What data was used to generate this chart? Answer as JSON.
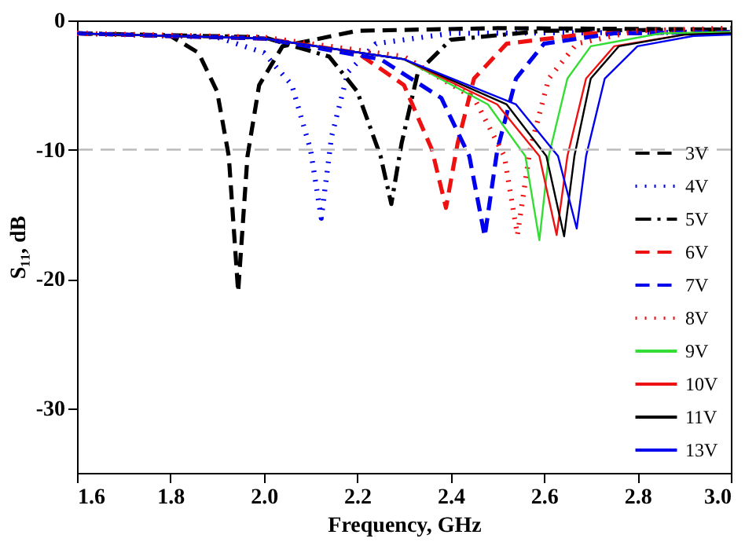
{
  "chart_data": {
    "type": "line",
    "xlabel": "Frequency, GHz",
    "ylabel": "S₁₁, dB",
    "xlim": [
      1.6,
      3.0
    ],
    "xticks": [
      1.6,
      1.8,
      {
        "value": 2.0,
        "label": "2.0"
      },
      2.2,
      2.4,
      2.6,
      2.8,
      {
        "value": 3.0,
        "label": "3.0"
      }
    ],
    "ylim": [
      -35,
      0
    ],
    "yticks": [
      0,
      -10,
      -20,
      -30
    ],
    "grid": false,
    "legend": "bottom right",
    "marker": "none",
    "ref_lines": [
      {
        "axis": "y",
        "value": -10,
        "color": "#bbbbbb",
        "line_style": "dashed"
      }
    ],
    "series": [
      {
        "name": "3V",
        "color": "#000000",
        "line_style": "dashed",
        "x": [
          1.6,
          1.8,
          1.86,
          1.9,
          1.925,
          1.945,
          1.965,
          1.99,
          2.04,
          2.2,
          2.5,
          3.0
        ],
        "values": [
          -1,
          -1.2,
          -2.5,
          -5.5,
          -10.5,
          -21,
          -10.5,
          -5,
          -2,
          -0.8,
          -0.6,
          -0.7
        ]
      },
      {
        "name": "4V",
        "color": "#0000ee",
        "line_style": "dotted",
        "x": [
          1.6,
          1.9,
          2.0,
          2.06,
          2.1,
          2.123,
          2.145,
          2.18,
          2.24,
          2.4,
          3.0
        ],
        "values": [
          -1,
          -1.3,
          -2.5,
          -5,
          -10,
          -15.3,
          -9,
          -4,
          -1.8,
          -1,
          -0.9
        ]
      },
      {
        "name": "5V",
        "color": "#000000",
        "line_style": "dashdot",
        "x": [
          1.6,
          2.0,
          2.14,
          2.2,
          2.25,
          2.273,
          2.295,
          2.33,
          2.4,
          2.6,
          3.0
        ],
        "values": [
          -1,
          -1.3,
          -2.8,
          -5.5,
          -10.5,
          -14.2,
          -9.5,
          -4,
          -1.5,
          -0.8,
          -0.7
        ]
      },
      {
        "name": "6V",
        "color": "#ee1111",
        "line_style": "dashed",
        "x": [
          1.6,
          2.0,
          2.2,
          2.3,
          2.36,
          2.39,
          2.415,
          2.45,
          2.52,
          2.7,
          3.0
        ],
        "values": [
          -1,
          -1.4,
          -2.5,
          -5,
          -10,
          -14.5,
          -9.5,
          -4.5,
          -1.8,
          -1,
          -0.9
        ]
      },
      {
        "name": "7V",
        "color": "#0000ee",
        "line_style": "dashed",
        "x": [
          1.6,
          2.0,
          2.25,
          2.38,
          2.44,
          2.473,
          2.5,
          2.54,
          2.6,
          2.75,
          3.0
        ],
        "values": [
          -1,
          -1.4,
          -3,
          -6,
          -10.5,
          -16.7,
          -10,
          -4.5,
          -1.8,
          -1,
          -0.9
        ]
      },
      {
        "name": "8V",
        "color": "#ee1111",
        "line_style": "dotted",
        "x": [
          1.6,
          2.0,
          2.3,
          2.45,
          2.515,
          2.543,
          2.57,
          2.61,
          2.67,
          2.8,
          3.0
        ],
        "values": [
          -1,
          -1.3,
          -2.8,
          -6,
          -10.5,
          -16.6,
          -10,
          -4.5,
          -1.8,
          -0.8,
          -0.6
        ]
      },
      {
        "name": "9V",
        "color": "#33dd33",
        "line_style": "solid",
        "x": [
          1.6,
          2.0,
          2.3,
          2.48,
          2.56,
          2.59,
          2.61,
          2.65,
          2.7,
          2.85,
          3.0
        ],
        "values": [
          -1,
          -1.4,
          -3,
          -6.5,
          -10.5,
          -17,
          -10.5,
          -4.5,
          -2,
          -1,
          -0.9
        ]
      },
      {
        "name": "10V",
        "color": "#ee1111",
        "line_style": "solid",
        "x": [
          1.6,
          2.0,
          2.3,
          2.5,
          2.59,
          2.627,
          2.65,
          2.69,
          2.75,
          2.9,
          3.0
        ],
        "values": [
          -1,
          -1.4,
          -3,
          -6.5,
          -10.5,
          -16.6,
          -10.5,
          -4.5,
          -2,
          -1.1,
          -1
        ]
      },
      {
        "name": "11V",
        "color": "#000000",
        "line_style": "solid",
        "x": [
          1.6,
          2.0,
          2.3,
          2.52,
          2.605,
          2.643,
          2.665,
          2.7,
          2.76,
          2.9,
          3.0
        ],
        "values": [
          -1,
          -1.4,
          -3,
          -6.5,
          -10.5,
          -16.7,
          -10.5,
          -4.5,
          -2,
          -1.1,
          -1
        ]
      },
      {
        "name": "13V",
        "color": "#0000ee",
        "line_style": "solid",
        "x": [
          1.6,
          2.0,
          2.3,
          2.54,
          2.63,
          2.67,
          2.69,
          2.73,
          2.8,
          2.92,
          3.0
        ],
        "values": [
          -1,
          -1.4,
          -3,
          -6.5,
          -10.5,
          -16.1,
          -10.5,
          -4.5,
          -2,
          -1.2,
          -1.1
        ]
      }
    ]
  }
}
